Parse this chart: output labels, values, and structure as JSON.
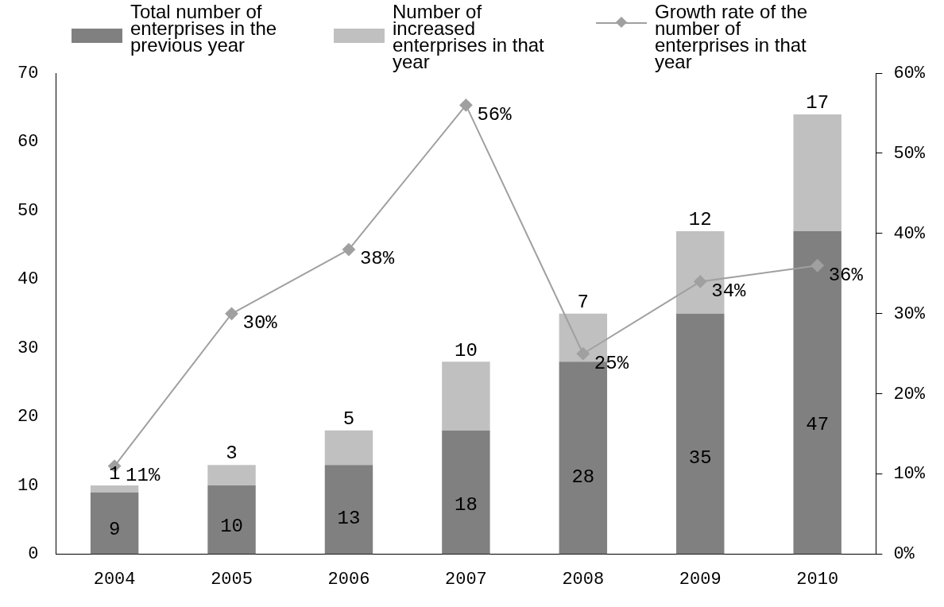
{
  "chart_data": {
    "type": "bar",
    "stacked": true,
    "categories": [
      "2004",
      "2005",
      "2006",
      "2007",
      "2008",
      "2009",
      "2010"
    ],
    "series": [
      {
        "name": "Total number of enterprises in the previous year",
        "color": "#808080",
        "values": [
          9,
          10,
          13,
          18,
          28,
          35,
          47
        ],
        "value_labels": [
          "9",
          "10",
          "13",
          "18",
          "28",
          "35",
          "47"
        ]
      },
      {
        "name": "Number of increased enterprises in that year",
        "color": "#c0c0c0",
        "values": [
          1,
          3,
          5,
          10,
          7,
          12,
          17
        ],
        "value_labels": [
          "1",
          "3",
          "5",
          "10",
          "7",
          "12",
          "17"
        ]
      },
      {
        "name": "Growth rate of the number of enterprises in that year",
        "type": "line",
        "axis": "y2",
        "color": "#a0a0a0",
        "marker": "diamond",
        "values": [
          11,
          30,
          38,
          56,
          25,
          34,
          36
        ],
        "value_labels": [
          "11%",
          "30%",
          "38%",
          "56%",
          "25%",
          "34%",
          "36%"
        ]
      }
    ],
    "ylim": [
      0,
      70
    ],
    "yticks": [
      0,
      10,
      20,
      30,
      40,
      50,
      60,
      70
    ],
    "y2lim": [
      0,
      60
    ],
    "y2ticks": [
      {
        "value": 0,
        "label": "0%"
      },
      {
        "value": 10,
        "label": "10%"
      },
      {
        "value": 20,
        "label": "20%"
      },
      {
        "value": 30,
        "label": "30%"
      },
      {
        "value": 40,
        "label": "40%"
      },
      {
        "value": 50,
        "label": "50%"
      },
      {
        "value": 60,
        "label": "60%"
      }
    ],
    "grid": false,
    "legend": "top"
  }
}
